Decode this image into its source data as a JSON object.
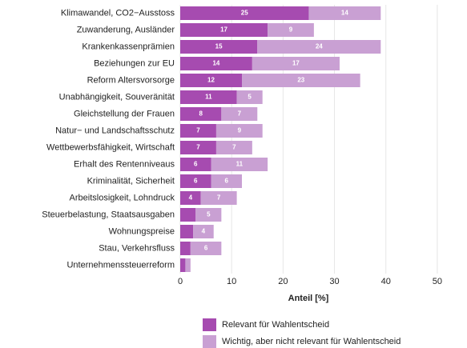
{
  "chart_data": {
    "type": "stacked-barh",
    "categories": [
      "Klimawandel, CO2−Ausstoss",
      "Zuwanderung, Ausländer",
      "Krankenkassenprämien",
      "Beziehungen zur EU",
      "Reform Altersvorsorge",
      "Unabhängigkeit, Souveränität",
      "Gleichstellung der Frauen",
      "Natur− und Landschaftsschutz",
      "Wettbewerbsfähigkeit, Wirtschaft",
      "Erhalt des Rentenniveaus",
      "Kriminalität, Sicherheit",
      "Arbeitslosigkeit, Lohndruck",
      "Steuerbelastung, Staatsausgaben",
      "Wohnungspreise",
      "Stau, Verkehrsfluss",
      "Unternehmenssteuerreform"
    ],
    "series": [
      {
        "name": "Relevant für Wahlentscheid",
        "color": "#a64bb0",
        "values": [
          25,
          17,
          15,
          14,
          12,
          11,
          8,
          7,
          7,
          6,
          6,
          4,
          3,
          2.5,
          2,
          1
        ],
        "value_labels": [
          "25",
          "17",
          "15",
          "14",
          "12",
          "11",
          "8",
          "7",
          "7",
          "6",
          "6",
          "4",
          null,
          null,
          null,
          null
        ]
      },
      {
        "name": "Wichtig, aber nicht relevant für Wahlentscheid",
        "color": "#c9a0d3",
        "values": [
          14,
          9,
          24,
          17,
          23,
          5,
          7,
          9,
          7,
          11,
          6,
          7,
          5,
          4,
          6,
          1
        ],
        "value_labels": [
          "14",
          "9",
          "24",
          "17",
          "23",
          "5",
          "7",
          "9",
          "7",
          "11",
          "6",
          "7",
          "5",
          "4",
          "6",
          null
        ]
      }
    ],
    "xlabel": "Anteil [%]",
    "xlim": [
      0,
      55
    ],
    "xticks": [
      0,
      10,
      20,
      30,
      40,
      50
    ],
    "grid": true
  }
}
